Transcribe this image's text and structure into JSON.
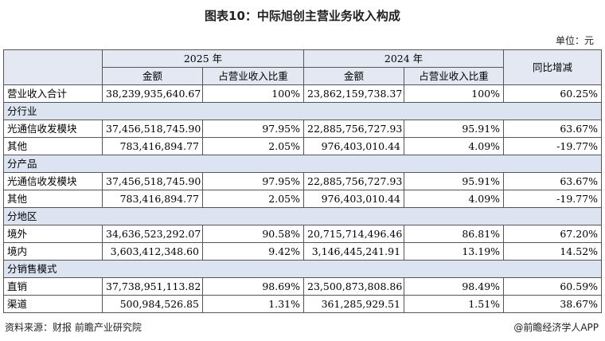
{
  "title": "图表10：中际旭创主营业务收入构成",
  "unit": "单位：元",
  "header": {
    "year2025": "2025 年",
    "year2024": "2024 年",
    "amount": "金额",
    "ratio": "占营业收入比重",
    "yoy": "同比增减"
  },
  "total": {
    "label": "营业收入合计",
    "a25": "38,239,935,640.67",
    "r25": "100%",
    "a24": "23,862,159,738.37",
    "r24": "100%",
    "yoy": "60.25%"
  },
  "sections": [
    {
      "name": "分行业",
      "rows": [
        {
          "label": "光通信收发模块",
          "a25": "37,456,518,745.90",
          "r25": "97.95%",
          "a24": "22,885,756,727.93",
          "r24": "95.91%",
          "yoy": "63.67%"
        },
        {
          "label": "其他",
          "a25": "783,416,894.77",
          "r25": "2.05%",
          "a24": "976,403,010.44",
          "r24": "4.09%",
          "yoy": "-19.77%"
        }
      ]
    },
    {
      "name": "分产品",
      "rows": [
        {
          "label": "光通信收发模块",
          "a25": "37,456,518,745.90",
          "r25": "97.95%",
          "a24": "22,885,756,727.93",
          "r24": "95.91%",
          "yoy": "63.67%"
        },
        {
          "label": "其他",
          "a25": "783,416,894.77",
          "r25": "2.05%",
          "a24": "976,403,010.44",
          "r24": "4.09%",
          "yoy": "-19.77%"
        }
      ]
    },
    {
      "name": "分地区",
      "rows": [
        {
          "label": "境外",
          "a25": "34,636,523,292.07",
          "r25": "90.58%",
          "a24": "20,715,714,496.46",
          "r24": "86.81%",
          "yoy": "67.20%"
        },
        {
          "label": "境内",
          "a25": "3,603,412,348.60",
          "r25": "9.42%",
          "a24": "3,146,445,241.91",
          "r24": "13.19%",
          "yoy": "14.52%"
        }
      ]
    },
    {
      "name": "分销售模式",
      "rows": [
        {
          "label": "直销",
          "a25": "37,738,951,113.82",
          "r25": "98.69%",
          "a24": "23,500,873,808.86",
          "r24": "98.49%",
          "yoy": "60.59%"
        },
        {
          "label": "渠道",
          "a25": "500,984,526.85",
          "r25": "1.31%",
          "a24": "361,285,929.51",
          "r24": "1.51%",
          "yoy": "38.67%"
        }
      ]
    }
  ],
  "footer": {
    "source": "资料来源：财报 前瞻产业研究院",
    "brand": "@前瞻经济学人APP"
  }
}
